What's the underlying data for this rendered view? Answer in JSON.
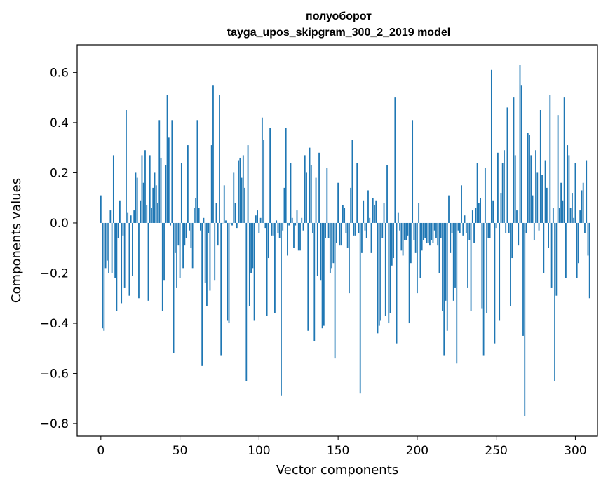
{
  "chart_data": {
    "type": "bar",
    "title_line1": "полуоборот",
    "title_line2": "tayga_upos_skipgram_300_2_2019 model",
    "xlabel": "Vector components",
    "ylabel": "Components values",
    "xlim": [
      -15,
      314
    ],
    "ylim": [
      -0.85,
      0.71
    ],
    "xticks": [
      0,
      50,
      100,
      150,
      200,
      250,
      300
    ],
    "xtick_labels": [
      "0",
      "50",
      "100",
      "150",
      "200",
      "250",
      "300"
    ],
    "yticks": [
      -0.8,
      -0.6,
      -0.4,
      -0.2,
      0.0,
      0.2,
      0.4,
      0.6
    ],
    "ytick_labels": [
      "−0.8",
      "−0.6",
      "−0.4",
      "−0.2",
      "0.0",
      "0.2",
      "0.4",
      "0.6"
    ],
    "bar_color": "#1f77b4",
    "values": [
      0.11,
      -0.42,
      -0.43,
      -0.18,
      -0.15,
      -0.2,
      0.05,
      -0.2,
      0.27,
      -0.22,
      -0.35,
      -0.06,
      0.09,
      -0.32,
      -0.05,
      -0.26,
      0.45,
      0.04,
      -0.29,
      0.03,
      -0.21,
      0.05,
      0.2,
      0.18,
      -0.3,
      0.09,
      0.27,
      0.16,
      0.29,
      0.07,
      -0.31,
      0.27,
      0.06,
      0.14,
      0.2,
      0.15,
      0.08,
      0.41,
      0.26,
      -0.35,
      -0.23,
      0.23,
      0.51,
      0.34,
      -0.01,
      0.41,
      -0.52,
      -0.12,
      -0.26,
      -0.09,
      -0.22,
      0.24,
      -0.18,
      -0.09,
      -0.06,
      0.31,
      -0.03,
      -0.1,
      -0.18,
      0.06,
      0.1,
      0.41,
      0.06,
      -0.03,
      -0.57,
      0.02,
      -0.24,
      -0.33,
      -0.04,
      -0.27,
      0.31,
      0.55,
      -0.23,
      0.08,
      -0.09,
      0.51,
      -0.53,
      0.0,
      0.15,
      0.01,
      -0.39,
      -0.4,
      0.0,
      -0.01,
      0.2,
      0.08,
      -0.02,
      0.25,
      0.26,
      0.18,
      0.27,
      0.14,
      -0.63,
      0.31,
      -0.33,
      -0.2,
      -0.18,
      -0.39,
      0.03,
      0.05,
      -0.04,
      0.02,
      0.42,
      0.33,
      -0.02,
      -0.37,
      -0.14,
      0.38,
      -0.05,
      -0.05,
      -0.36,
      0.01,
      -0.04,
      -0.06,
      -0.69,
      -0.03,
      0.14,
      0.38,
      -0.13,
      -0.01,
      0.24,
      0.02,
      -0.1,
      -0.01,
      0.05,
      -0.11,
      -0.11,
      0.02,
      -0.03,
      0.27,
      0.2,
      -0.43,
      0.3,
      0.23,
      -0.04,
      -0.47,
      0.18,
      -0.21,
      0.28,
      -0.23,
      -0.42,
      -0.41,
      -0.06,
      0.22,
      -0.06,
      -0.2,
      -0.18,
      -0.16,
      -0.54,
      -0.08,
      0.16,
      -0.09,
      -0.09,
      0.07,
      0.06,
      -0.04,
      -0.1,
      -0.28,
      0.14,
      0.33,
      -0.05,
      -0.05,
      0.24,
      -0.04,
      -0.68,
      -0.12,
      0.09,
      -0.03,
      -0.06,
      0.13,
      0.02,
      -0.12,
      0.1,
      0.07,
      0.09,
      -0.44,
      -0.41,
      -0.39,
      -0.06,
      0.08,
      -0.37,
      0.23,
      -0.4,
      -0.36,
      -0.17,
      -0.14,
      0.5,
      -0.48,
      0.04,
      -0.03,
      -0.11,
      -0.13,
      -0.07,
      -0.07,
      -0.05,
      -0.4,
      -0.16,
      0.41,
      -0.07,
      -0.12,
      -0.28,
      0.08,
      -0.22,
      -0.11,
      -0.07,
      -0.06,
      -0.08,
      -0.08,
      -0.09,
      -0.07,
      -0.08,
      -0.03,
      -0.06,
      -0.09,
      -0.2,
      -0.06,
      -0.35,
      -0.53,
      -0.31,
      -0.43,
      0.11,
      -0.12,
      -0.04,
      -0.31,
      -0.26,
      -0.56,
      -0.03,
      -0.04,
      0.15,
      -0.05,
      0.03,
      -0.04,
      -0.26,
      -0.07,
      -0.35,
      0.05,
      -0.08,
      0.06,
      0.24,
      0.08,
      0.1,
      -0.34,
      -0.53,
      0.22,
      -0.36,
      -0.06,
      -0.06,
      0.61,
      0.09,
      -0.48,
      -0.02,
      0.28,
      -0.39,
      0.12,
      0.24,
      0.29,
      -0.04,
      0.46,
      -0.04,
      -0.33,
      -0.14,
      0.5,
      0.27,
      0.05,
      -0.09,
      0.63,
      0.55,
      -0.45,
      -0.77,
      -0.04,
      0.36,
      0.35,
      0.27,
      0.11,
      -0.07,
      0.29,
      0.2,
      -0.03,
      0.45,
      0.19,
      -0.2,
      0.25,
      0.14,
      -0.1,
      0.51,
      -0.26,
      0.06,
      -0.63,
      -0.29,
      0.43,
      0.06,
      0.16,
      0.09,
      0.5,
      -0.22,
      0.31,
      0.27,
      0.06,
      0.12,
      0.02,
      0.24,
      -0.22,
      -0.16,
      0.05,
      0.13,
      0.16,
      -0.04,
      0.25,
      -0.13,
      -0.3
    ]
  }
}
